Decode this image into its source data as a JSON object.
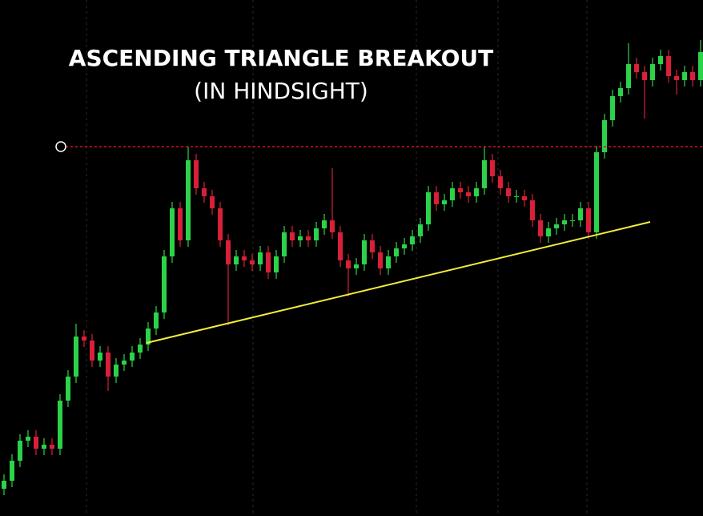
{
  "chart_data": {
    "type": "candlestick",
    "title": "ASCENDING TRIANGLE BREAKOUT",
    "subtitle": "(IN HINDSIGHT)",
    "ylim": [
      0,
      644
    ],
    "xlim": [
      -0.5,
      87.3
    ],
    "up_color": "#2bd24a",
    "down_color": "#d8203a",
    "open": [
      34,
      44,
      69,
      94,
      99,
      84,
      89,
      84,
      144,
      174,
      224,
      219,
      194,
      204,
      174,
      189,
      194,
      204,
      214,
      234,
      254,
      324,
      384,
      344,
      444,
      409,
      399,
      384,
      344,
      314,
      324,
      319,
      314,
      329,
      304,
      324,
      354,
      344,
      349,
      344,
      359,
      369,
      354,
      319,
      309,
      314,
      344,
      329,
      309,
      324,
      334,
      339,
      349,
      364,
      404,
      389,
      394,
      409,
      404,
      399,
      409,
      444,
      424,
      409,
      399,
      399,
      394,
      369,
      349,
      359,
      364,
      369,
      369,
      384,
      354,
      454,
      494,
      524,
      534,
      564,
      554,
      544,
      564,
      574,
      549,
      544,
      554,
      544
    ],
    "high": [
      52,
      77,
      102,
      107,
      107,
      97,
      97,
      152,
      182,
      240,
      232,
      227,
      212,
      212,
      197,
      202,
      212,
      222,
      242,
      262,
      332,
      392,
      392,
      461,
      452,
      417,
      407,
      392,
      352,
      332,
      332,
      327,
      337,
      337,
      332,
      362,
      362,
      357,
      357,
      367,
      377,
      434,
      362,
      327,
      322,
      352,
      352,
      337,
      332,
      342,
      347,
      357,
      372,
      412,
      412,
      402,
      417,
      417,
      412,
      417,
      461,
      452,
      432,
      417,
      407,
      407,
      402,
      377,
      367,
      372,
      377,
      377,
      392,
      392,
      462,
      502,
      532,
      542,
      590,
      572,
      562,
      572,
      582,
      582,
      557,
      562,
      562,
      594
    ],
    "low": [
      26,
      36,
      61,
      86,
      76,
      76,
      76,
      76,
      136,
      166,
      211,
      186,
      186,
      156,
      166,
      181,
      186,
      196,
      206,
      226,
      246,
      316,
      336,
      336,
      401,
      391,
      376,
      336,
      238,
      306,
      311,
      306,
      306,
      296,
      296,
      316,
      336,
      336,
      336,
      336,
      351,
      346,
      311,
      274,
      301,
      306,
      321,
      301,
      301,
      316,
      326,
      331,
      341,
      356,
      381,
      381,
      386,
      396,
      391,
      391,
      401,
      416,
      401,
      391,
      391,
      386,
      361,
      341,
      341,
      351,
      356,
      361,
      361,
      346,
      346,
      446,
      486,
      516,
      526,
      546,
      496,
      536,
      556,
      541,
      526,
      536,
      536,
      536
    ],
    "close": [
      44,
      69,
      94,
      99,
      84,
      89,
      84,
      144,
      174,
      224,
      219,
      194,
      204,
      174,
      189,
      194,
      204,
      214,
      234,
      254,
      324,
      384,
      344,
      444,
      409,
      399,
      384,
      344,
      314,
      324,
      319,
      314,
      329,
      304,
      324,
      354,
      344,
      349,
      344,
      359,
      369,
      354,
      319,
      309,
      314,
      344,
      329,
      309,
      324,
      334,
      339,
      349,
      364,
      404,
      389,
      394,
      409,
      404,
      399,
      409,
      444,
      424,
      409,
      399,
      399,
      394,
      369,
      349,
      359,
      364,
      369,
      369,
      384,
      354,
      454,
      494,
      524,
      534,
      564,
      554,
      544,
      564,
      574,
      549,
      544,
      554,
      544,
      579
    ],
    "resistance": {
      "value": 461,
      "color": "#e0101a",
      "marker_x": 7.1
    },
    "support": {
      "x": [
        17.8,
        80.7
      ],
      "values": [
        216,
        367
      ],
      "color": "#f2ee3a"
    }
  }
}
